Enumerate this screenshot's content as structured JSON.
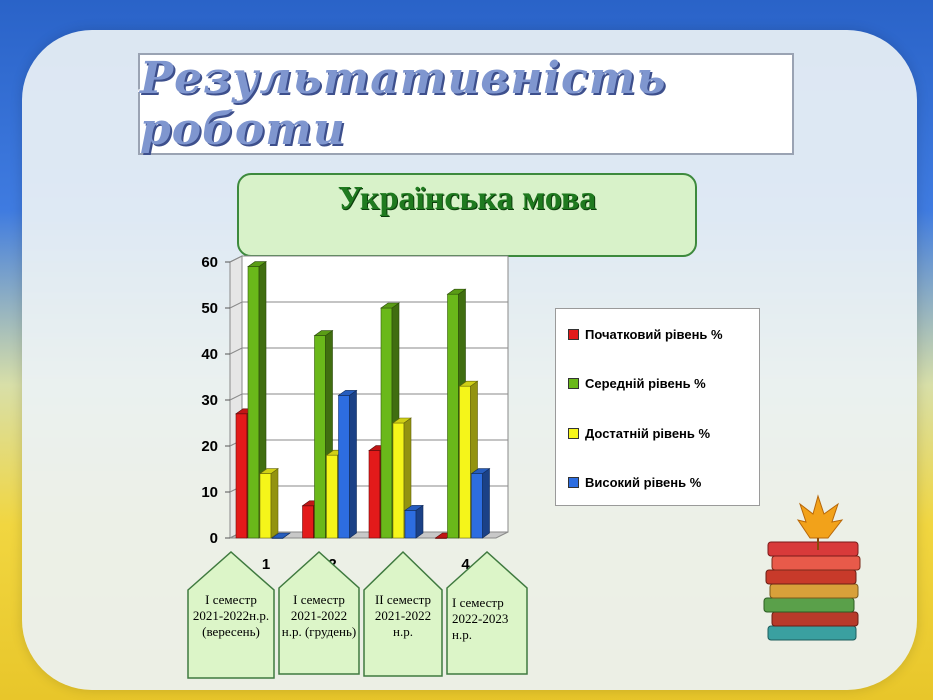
{
  "header": {
    "title": "Результативність роботи"
  },
  "subject": {
    "label": "Українська мова"
  },
  "colors": {
    "initial": "#e31a1a",
    "middle": "#6ab81a",
    "sufficient": "#f5f51a",
    "high": "#2d6de0"
  },
  "semesters": [
    {
      "label": "I семестр 2021-2022н.р. (вересень)"
    },
    {
      "label": "I семестр 2021-2022 н.р. (грудень)"
    },
    {
      "label": "II семестр 2021-2022 н.р."
    },
    {
      "label": "I семестр 2022-2023 н.р."
    }
  ],
  "chart_data": {
    "type": "bar",
    "title": "",
    "xlabel": "",
    "ylabel": "",
    "categories": [
      "1",
      "2",
      "",
      "4"
    ],
    "ylim": [
      0,
      60
    ],
    "yticks": [
      0,
      10,
      20,
      30,
      40,
      50,
      60
    ],
    "grid": true,
    "legend": "right",
    "series": [
      {
        "name": "Початковий рівень %",
        "values": [
          27,
          7,
          19,
          0
        ]
      },
      {
        "name": "Середній рівень %",
        "values": [
          59,
          44,
          50,
          53
        ]
      },
      {
        "name": "Достатній рівень %",
        "values": [
          14,
          18,
          25,
          33
        ]
      },
      {
        "name": "Високий рівень %",
        "values": [
          0,
          31,
          6,
          14
        ]
      }
    ]
  }
}
